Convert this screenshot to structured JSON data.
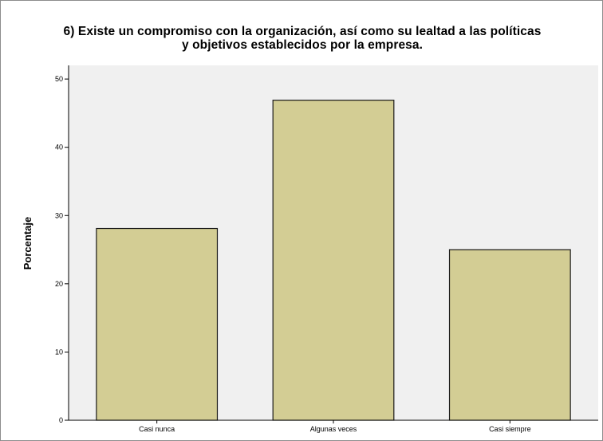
{
  "chart_data": {
    "type": "bar",
    "title_lines": [
      "6) Existe un compromiso con la organización, así como su lealtad a las políticas",
      "y objetivos establecidos por la empresa."
    ],
    "categories": [
      "Casi nunca",
      "Algunas veces",
      "Casi siempre"
    ],
    "values": [
      28.1,
      46.9,
      25.0
    ],
    "xlabel": "",
    "ylabel": "Porcentaje",
    "ylim": [
      0,
      52
    ],
    "yticks": [
      0,
      10,
      20,
      30,
      40,
      50
    ],
    "grid": false,
    "legend": "none",
    "bar_color": "#d3cd94",
    "bar_edge_color": "#1a1a1a",
    "plot_background": "#f0f0f0"
  }
}
